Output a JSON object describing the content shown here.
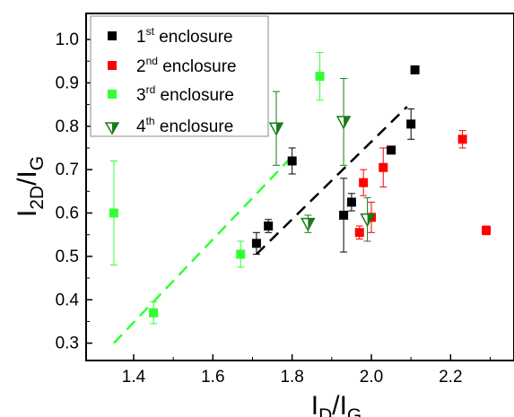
{
  "chart_data": {
    "type": "scatter",
    "title": "",
    "xlabel": {
      "main": "I",
      "sub": "D",
      "slash": "/I",
      "sub2": "G"
    },
    "ylabel": {
      "main": "I",
      "sub": "2D",
      "slash": "/I",
      "sub2": "G"
    },
    "xlim": [
      1.28,
      2.36
    ],
    "ylim": [
      0.26,
      1.06
    ],
    "xticks": [
      1.4,
      1.6,
      1.8,
      2.0,
      2.2
    ],
    "xtick_labels": [
      "1.4",
      "1.6",
      "1.8",
      "2.0",
      "2.2"
    ],
    "yticks": [
      0.3,
      0.4,
      0.5,
      0.6,
      0.7,
      0.8,
      0.9,
      1.0
    ],
    "ytick_labels": [
      "0.3",
      "0.4",
      "0.5",
      "0.6",
      "0.7",
      "0.8",
      "0.9",
      "1.0"
    ],
    "legend_position": "top-left",
    "series": [
      {
        "name": "1st enclosure",
        "name_base": "1",
        "name_sup": "st",
        "name_rest": " enclosure",
        "marker": "square",
        "color": "#000000",
        "points": [
          {
            "x": 1.71,
            "y": 0.53,
            "err": 0.025
          },
          {
            "x": 1.74,
            "y": 0.57,
            "err": 0.015
          },
          {
            "x": 1.8,
            "y": 0.72,
            "err": 0.03
          },
          {
            "x": 1.93,
            "y": 0.595,
            "err": 0.085
          },
          {
            "x": 1.95,
            "y": 0.625,
            "err": 0.02
          },
          {
            "x": 2.05,
            "y": 0.745,
            "err": 0.005
          },
          {
            "x": 2.1,
            "y": 0.805,
            "err": 0.035
          },
          {
            "x": 2.11,
            "y": 0.93,
            "err": 0.0
          }
        ]
      },
      {
        "name": "2nd enclosure",
        "name_base": "2",
        "name_sup": "nd",
        "name_rest": " enclosure",
        "marker": "square",
        "color": "#ff0000",
        "points": [
          {
            "x": 1.97,
            "y": 0.555,
            "err": 0.015
          },
          {
            "x": 1.98,
            "y": 0.67,
            "err": 0.03
          },
          {
            "x": 2.0,
            "y": 0.59,
            "err": 0.035
          },
          {
            "x": 2.03,
            "y": 0.705,
            "err": 0.045
          },
          {
            "x": 2.23,
            "y": 0.77,
            "err": 0.02
          },
          {
            "x": 2.29,
            "y": 0.56,
            "err": 0.01
          }
        ]
      },
      {
        "name": "3rd enclosure",
        "name_base": "3",
        "name_sup": "rd",
        "name_rest": " enclosure",
        "marker": "square",
        "color": "#33ff33",
        "points": [
          {
            "x": 1.35,
            "y": 0.6,
            "err": 0.12
          },
          {
            "x": 1.45,
            "y": 0.37,
            "err": 0.025
          },
          {
            "x": 1.67,
            "y": 0.505,
            "err": 0.03
          },
          {
            "x": 1.87,
            "y": 0.915,
            "err": 0.055
          }
        ]
      },
      {
        "name": "4th enclosure",
        "name_base": "4",
        "name_sup": "th",
        "name_rest": " enclosure",
        "marker": "half-filled-triangle-down",
        "color": "#1a7a1a",
        "points": [
          {
            "x": 1.76,
            "y": 0.795,
            "err": 0.085
          },
          {
            "x": 1.84,
            "y": 0.575,
            "err": 0.02
          },
          {
            "x": 1.93,
            "y": 0.81,
            "err": 0.1
          },
          {
            "x": 1.99,
            "y": 0.585,
            "err": 0.05
          }
        ]
      }
    ],
    "trend_lines": [
      {
        "color": "#000000",
        "from": [
          1.71,
          0.505
        ],
        "to": [
          2.09,
          0.845
        ]
      },
      {
        "color": "#33ff33",
        "from": [
          1.35,
          0.3
        ],
        "to": [
          1.81,
          0.74
        ]
      }
    ]
  }
}
